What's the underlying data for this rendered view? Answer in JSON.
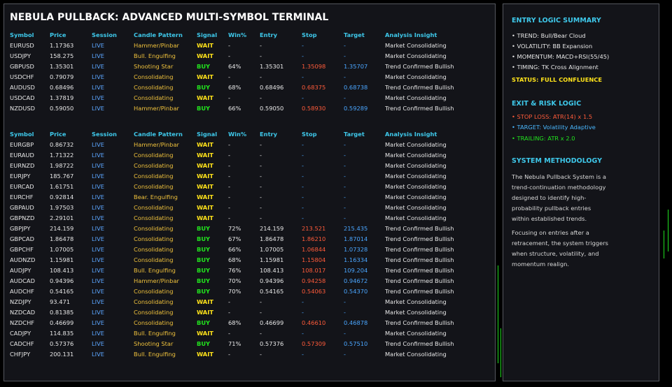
{
  "title": "NEBULA PULLBACK: ADVANCED MULTI-SYMBOL TERMINAL",
  "tables": [
    {
      "headers": [
        "Symbol",
        "Price",
        "Session",
        "Candle Pattern",
        "Signal",
        "Win%",
        "Entry",
        "Stop",
        "Target",
        "Analysis Insight"
      ],
      "rows": [
        [
          "EURUSD",
          "1.17363",
          "LIVE",
          "Hammer/Pinbar",
          "WAIT",
          "-",
          "-",
          "-",
          "-",
          "Market Consolidating"
        ],
        [
          "USDJPY",
          "158.275",
          "LIVE",
          "Bull. Engulfing",
          "WAIT",
          "-",
          "-",
          "-",
          "-",
          "Market Consolidating"
        ],
        [
          "GBPUSD",
          "1.35301",
          "LIVE",
          "Shooting Star",
          "BUY",
          "64%",
          "1.35301",
          "1.35098",
          "1.35707",
          "Trend Confirmed Bullish"
        ],
        [
          "USDCHF",
          "0.79079",
          "LIVE",
          "Consolidating",
          "WAIT",
          "-",
          "-",
          "-",
          "-",
          "Market Consolidating"
        ],
        [
          "AUDUSD",
          "0.68496",
          "LIVE",
          "Consolidating",
          "BUY",
          "68%",
          "0.68496",
          "0.68375",
          "0.68738",
          "Trend Confirmed Bullish"
        ],
        [
          "USDCAD",
          "1.37819",
          "LIVE",
          "Consolidating",
          "WAIT",
          "-",
          "-",
          "-",
          "-",
          "Market Consolidating"
        ],
        [
          "NZDUSD",
          "0.59050",
          "LIVE",
          "Hammer/Pinbar",
          "BUY",
          "66%",
          "0.59050",
          "0.58930",
          "0.59289",
          "Trend Confirmed Bullish"
        ]
      ]
    },
    {
      "headers": [
        "Symbol",
        "Price",
        "Session",
        "Candle Pattern",
        "Signal",
        "Win%",
        "Entry",
        "Stop",
        "Target",
        "Analysis Insight"
      ],
      "rows": [
        [
          "EURGBP",
          "0.86732",
          "LIVE",
          "Hammer/Pinbar",
          "WAIT",
          "-",
          "-",
          "-",
          "-",
          "Market Consolidating"
        ],
        [
          "EURAUD",
          "1.71322",
          "LIVE",
          "Consolidating",
          "WAIT",
          "-",
          "-",
          "-",
          "-",
          "Market Consolidating"
        ],
        [
          "EURNZD",
          "1.98722",
          "LIVE",
          "Consolidating",
          "WAIT",
          "-",
          "-",
          "-",
          "-",
          "Market Consolidating"
        ],
        [
          "EURJPY",
          "185.767",
          "LIVE",
          "Consolidating",
          "WAIT",
          "-",
          "-",
          "-",
          "-",
          "Market Consolidating"
        ],
        [
          "EURCAD",
          "1.61751",
          "LIVE",
          "Consolidating",
          "WAIT",
          "-",
          "-",
          "-",
          "-",
          "Market Consolidating"
        ],
        [
          "EURCHF",
          "0.92814",
          "LIVE",
          "Bear. Engulfing",
          "WAIT",
          "-",
          "-",
          "-",
          "-",
          "Market Consolidating"
        ],
        [
          "GBPAUD",
          "1.97503",
          "LIVE",
          "Consolidating",
          "WAIT",
          "-",
          "-",
          "-",
          "-",
          "Market Consolidating"
        ],
        [
          "GBPNZD",
          "2.29101",
          "LIVE",
          "Consolidating",
          "WAIT",
          "-",
          "-",
          "-",
          "-",
          "Market Consolidating"
        ],
        [
          "GBPJPY",
          "214.159",
          "LIVE",
          "Consolidating",
          "BUY",
          "72%",
          "214.159",
          "213.521",
          "215.435",
          "Trend Confirmed Bullish"
        ],
        [
          "GBPCAD",
          "1.86478",
          "LIVE",
          "Consolidating",
          "BUY",
          "67%",
          "1.86478",
          "1.86210",
          "1.87014",
          "Trend Confirmed Bullish"
        ],
        [
          "GBPCHF",
          "1.07005",
          "LIVE",
          "Consolidating",
          "BUY",
          "66%",
          "1.07005",
          "1.06844",
          "1.07328",
          "Trend Confirmed Bullish"
        ],
        [
          "AUDNZD",
          "1.15981",
          "LIVE",
          "Consolidating",
          "BUY",
          "68%",
          "1.15981",
          "1.15804",
          "1.16334",
          "Trend Confirmed Bullish"
        ],
        [
          "AUDJPY",
          "108.413",
          "LIVE",
          "Bull. Engulfing",
          "BUY",
          "76%",
          "108.413",
          "108.017",
          "109.204",
          "Trend Confirmed Bullish"
        ],
        [
          "AUDCAD",
          "0.94396",
          "LIVE",
          "Hammer/Pinbar",
          "BUY",
          "70%",
          "0.94396",
          "0.94258",
          "0.94672",
          "Trend Confirmed Bullish"
        ],
        [
          "AUDCHF",
          "0.54165",
          "LIVE",
          "Consolidating",
          "BUY",
          "70%",
          "0.54165",
          "0.54063",
          "0.54370",
          "Trend Confirmed Bullish"
        ],
        [
          "NZDJPY",
          "93.471",
          "LIVE",
          "Consolidating",
          "WAIT",
          "-",
          "-",
          "-",
          "-",
          "Market Consolidating"
        ],
        [
          "NZDCAD",
          "0.81385",
          "LIVE",
          "Consolidating",
          "WAIT",
          "-",
          "-",
          "-",
          "-",
          "Market Consolidating"
        ],
        [
          "NZDCHF",
          "0.46699",
          "LIVE",
          "Consolidating",
          "BUY",
          "68%",
          "0.46699",
          "0.46610",
          "0.46878",
          "Trend Confirmed Bullish"
        ],
        [
          "CADJPY",
          "114.835",
          "LIVE",
          "Bull. Engulfing",
          "WAIT",
          "-",
          "-",
          "-",
          "-",
          "Market Consolidating"
        ],
        [
          "CADCHF",
          "0.57376",
          "LIVE",
          "Shooting Star",
          "BUY",
          "71%",
          "0.57376",
          "0.57309",
          "0.57510",
          "Trend Confirmed Bullish"
        ],
        [
          "CHFJPY",
          "200.131",
          "LIVE",
          "Bull. Engulfing",
          "WAIT",
          "-",
          "-",
          "-",
          "-",
          "Market Consolidating"
        ]
      ]
    }
  ],
  "sidebar": {
    "entry": {
      "heading": "ENTRY LOGIC SUMMARY",
      "items": [
        "• TREND: Bull/Bear Cloud",
        "• VOLATILITY: BB Expansion",
        "• MOMENTUM: MACD+RSI(55/45)",
        "• TIMING: TK Cross Alignment"
      ],
      "status": "STATUS: FULL CONFLUENCE"
    },
    "exit": {
      "heading": "EXIT & RISK LOGIC",
      "stop": "• STOP LOSS: ATR(14) x 1.5",
      "target": "• TARGET: Volatility Adaptive",
      "trailing": "• TRAILING: ATR x 2.0"
    },
    "method": {
      "heading": "SYSTEM METHODOLOGY",
      "paragraphs": [
        [
          "The Nebula Pullback System is a",
          "trend-continuation methodology",
          "designed to identify high-",
          "probability pullback entries",
          "within established trends."
        ],
        [
          "Focusing on entries after a",
          "retracement, the system triggers",
          "when structure, volatility, and",
          "momentum realign."
        ]
      ]
    }
  }
}
